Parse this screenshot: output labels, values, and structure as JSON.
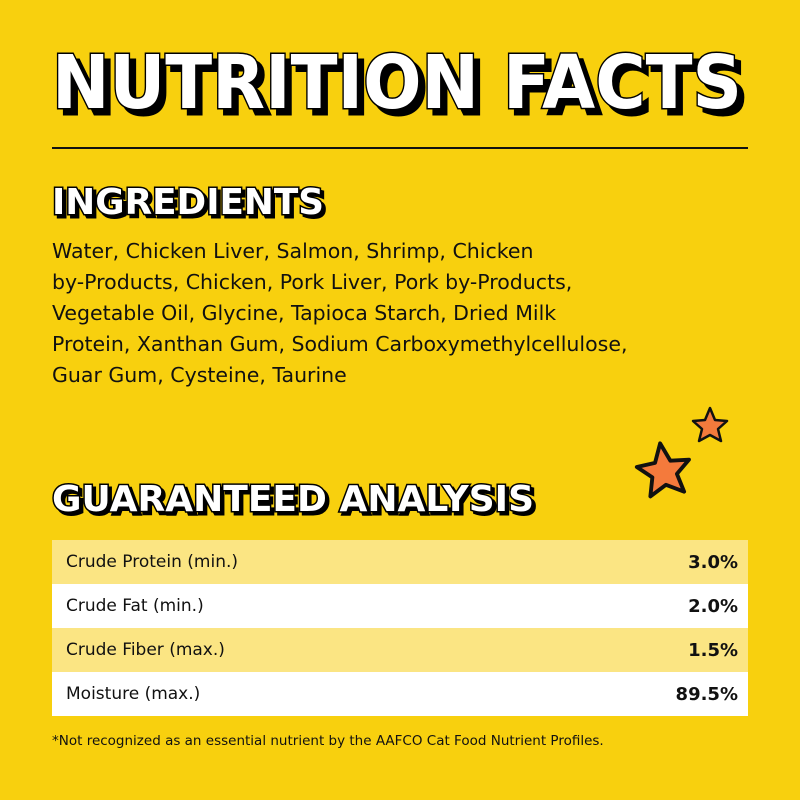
{
  "header": {
    "title": "NUTRITION FACTS"
  },
  "ingredients": {
    "heading": "INGREDIENTS",
    "lines": [
      "Water, Chicken Liver, Salmon, Shrimp, Chicken",
      "by-Products, Chicken, Pork Liver, Pork by-Products,",
      "Vegetable Oil, Glycine, Tapioca Starch, Dried Milk",
      "Protein, Xanthan Gum, Sodium Carboxymethylcellulose,",
      "Guar Gum, Cysteine, Taurine"
    ]
  },
  "analysis": {
    "heading": "GUARANTEED ANALYSIS",
    "rows": [
      [
        "Crude Protein (min.)",
        "3.0%"
      ],
      [
        "Crude Fat (min.)",
        "2.0%"
      ],
      [
        "Crude Fiber (max.)",
        "1.5%"
      ],
      [
        "Moisture (max.)",
        "89.5%"
      ]
    ]
  },
  "footnote": "*Not recognized as an essential nutrient by the AAFCO Cat Food Nutrient Profiles."
}
